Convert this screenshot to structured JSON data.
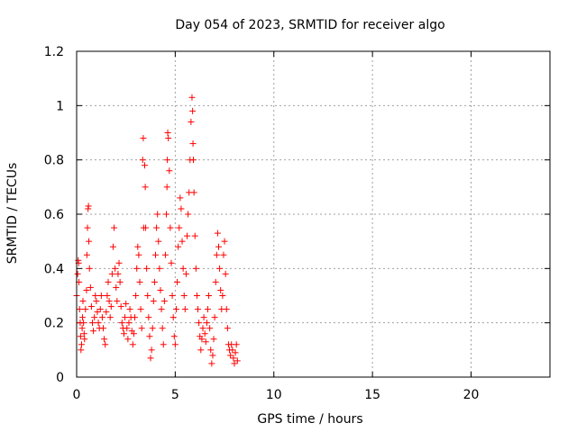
{
  "chart_data": {
    "type": "scatter",
    "title": "Day 054 of 2023, SRMTID for receiver algo",
    "xlabel": "GPS time / hours",
    "ylabel": "SRMTID / TECUs",
    "xlim": [
      0,
      24
    ],
    "ylim": [
      0,
      1.2
    ],
    "xticks": [
      0,
      5,
      10,
      15,
      20
    ],
    "xtick_labels": [
      "0",
      "5",
      "10",
      "15",
      "20"
    ],
    "yticks": [
      0,
      0.2,
      0.4,
      0.6,
      0.8,
      1,
      1.2
    ],
    "ytick_labels": [
      "0",
      "0.2",
      "0.4",
      "0.6",
      "0.8",
      "1",
      "1.2"
    ],
    "grid": true,
    "marker": "+",
    "series": [
      {
        "name": "SRMTID",
        "color": "#ff0000",
        "points": [
          [
            0.0,
            0.3
          ],
          [
            0.05,
            0.38
          ],
          [
            0.08,
            0.43
          ],
          [
            0.1,
            0.42
          ],
          [
            0.12,
            0.35
          ],
          [
            0.15,
            0.25
          ],
          [
            0.18,
            0.2
          ],
          [
            0.2,
            0.15
          ],
          [
            0.22,
            0.1
          ],
          [
            0.25,
            0.12
          ],
          [
            0.28,
            0.18
          ],
          [
            0.3,
            0.22
          ],
          [
            0.32,
            0.28
          ],
          [
            0.35,
            0.2
          ],
          [
            0.38,
            0.16
          ],
          [
            0.4,
            0.14
          ],
          [
            0.45,
            0.25
          ],
          [
            0.5,
            0.32
          ],
          [
            0.52,
            0.45
          ],
          [
            0.55,
            0.55
          ],
          [
            0.58,
            0.62
          ],
          [
            0.6,
            0.63
          ],
          [
            0.62,
            0.5
          ],
          [
            0.65,
            0.4
          ],
          [
            0.7,
            0.33
          ],
          [
            0.75,
            0.26
          ],
          [
            0.8,
            0.2
          ],
          [
            0.85,
            0.17
          ],
          [
            0.9,
            0.22
          ],
          [
            0.95,
            0.3
          ],
          [
            1.0,
            0.28
          ],
          [
            1.05,
            0.24
          ],
          [
            1.1,
            0.2
          ],
          [
            1.15,
            0.18
          ],
          [
            1.2,
            0.25
          ],
          [
            1.25,
            0.3
          ],
          [
            1.3,
            0.22
          ],
          [
            1.35,
            0.18
          ],
          [
            1.4,
            0.14
          ],
          [
            1.45,
            0.12
          ],
          [
            1.5,
            0.24
          ],
          [
            1.55,
            0.3
          ],
          [
            1.6,
            0.35
          ],
          [
            1.65,
            0.28
          ],
          [
            1.7,
            0.22
          ],
          [
            1.75,
            0.26
          ],
          [
            1.8,
            0.38
          ],
          [
            1.85,
            0.48
          ],
          [
            1.9,
            0.55
          ],
          [
            1.95,
            0.4
          ],
          [
            2.0,
            0.33
          ],
          [
            2.05,
            0.28
          ],
          [
            2.1,
            0.38
          ],
          [
            2.15,
            0.42
          ],
          [
            2.2,
            0.35
          ],
          [
            2.25,
            0.26
          ],
          [
            2.3,
            0.2
          ],
          [
            2.35,
            0.18
          ],
          [
            2.4,
            0.16
          ],
          [
            2.45,
            0.22
          ],
          [
            2.5,
            0.27
          ],
          [
            2.55,
            0.18
          ],
          [
            2.6,
            0.14
          ],
          [
            2.65,
            0.2
          ],
          [
            2.7,
            0.25
          ],
          [
            2.75,
            0.22
          ],
          [
            2.8,
            0.17
          ],
          [
            2.85,
            0.12
          ],
          [
            2.9,
            0.16
          ],
          [
            2.95,
            0.22
          ],
          [
            3.0,
            0.3
          ],
          [
            3.05,
            0.4
          ],
          [
            3.1,
            0.48
          ],
          [
            3.15,
            0.45
          ],
          [
            3.2,
            0.35
          ],
          [
            3.25,
            0.25
          ],
          [
            3.3,
            0.18
          ],
          [
            3.35,
            0.8
          ],
          [
            3.38,
            0.88
          ],
          [
            3.4,
            0.55
          ],
          [
            3.45,
            0.78
          ],
          [
            3.48,
            0.7
          ],
          [
            3.5,
            0.55
          ],
          [
            3.55,
            0.4
          ],
          [
            3.6,
            0.3
          ],
          [
            3.65,
            0.22
          ],
          [
            3.7,
            0.15
          ],
          [
            3.75,
            0.07
          ],
          [
            3.8,
            0.1
          ],
          [
            3.85,
            0.18
          ],
          [
            3.9,
            0.28
          ],
          [
            3.95,
            0.35
          ],
          [
            4.0,
            0.45
          ],
          [
            4.05,
            0.55
          ],
          [
            4.1,
            0.6
          ],
          [
            4.15,
            0.5
          ],
          [
            4.2,
            0.4
          ],
          [
            4.25,
            0.32
          ],
          [
            4.3,
            0.25
          ],
          [
            4.35,
            0.18
          ],
          [
            4.4,
            0.12
          ],
          [
            4.45,
            0.28
          ],
          [
            4.5,
            0.45
          ],
          [
            4.55,
            0.6
          ],
          [
            4.58,
            0.7
          ],
          [
            4.6,
            0.8
          ],
          [
            4.62,
            0.9
          ],
          [
            4.65,
            0.88
          ],
          [
            4.7,
            0.76
          ],
          [
            4.75,
            0.55
          ],
          [
            4.8,
            0.42
          ],
          [
            4.85,
            0.3
          ],
          [
            4.9,
            0.22
          ],
          [
            4.95,
            0.15
          ],
          [
            5.0,
            0.12
          ],
          [
            5.05,
            0.25
          ],
          [
            5.1,
            0.35
          ],
          [
            5.15,
            0.48
          ],
          [
            5.2,
            0.55
          ],
          [
            5.25,
            0.66
          ],
          [
            5.3,
            0.62
          ],
          [
            5.35,
            0.5
          ],
          [
            5.4,
            0.4
          ],
          [
            5.45,
            0.3
          ],
          [
            5.5,
            0.25
          ],
          [
            5.55,
            0.38
          ],
          [
            5.6,
            0.52
          ],
          [
            5.65,
            0.6
          ],
          [
            5.7,
            0.68
          ],
          [
            5.75,
            0.8
          ],
          [
            5.8,
            0.94
          ],
          [
            5.85,
            1.03
          ],
          [
            5.88,
            0.98
          ],
          [
            5.9,
            0.86
          ],
          [
            5.92,
            0.8
          ],
          [
            5.95,
            0.68
          ],
          [
            6.0,
            0.52
          ],
          [
            6.05,
            0.4
          ],
          [
            6.1,
            0.3
          ],
          [
            6.15,
            0.25
          ],
          [
            6.2,
            0.2
          ],
          [
            6.25,
            0.15
          ],
          [
            6.3,
            0.1
          ],
          [
            6.35,
            0.14
          ],
          [
            6.4,
            0.18
          ],
          [
            6.45,
            0.22
          ],
          [
            6.5,
            0.16
          ],
          [
            6.55,
            0.13
          ],
          [
            6.6,
            0.2
          ],
          [
            6.65,
            0.25
          ],
          [
            6.7,
            0.3
          ],
          [
            6.75,
            0.18
          ],
          [
            6.8,
            0.1
          ],
          [
            6.85,
            0.05
          ],
          [
            6.9,
            0.08
          ],
          [
            6.95,
            0.14
          ],
          [
            7.0,
            0.22
          ],
          [
            7.05,
            0.35
          ],
          [
            7.1,
            0.45
          ],
          [
            7.15,
            0.53
          ],
          [
            7.2,
            0.48
          ],
          [
            7.25,
            0.4
          ],
          [
            7.3,
            0.32
          ],
          [
            7.35,
            0.25
          ],
          [
            7.4,
            0.3
          ],
          [
            7.45,
            0.45
          ],
          [
            7.5,
            0.5
          ],
          [
            7.55,
            0.38
          ],
          [
            7.6,
            0.25
          ],
          [
            7.65,
            0.18
          ],
          [
            7.7,
            0.12
          ],
          [
            7.75,
            0.1
          ],
          [
            7.8,
            0.08
          ],
          [
            7.85,
            0.12
          ],
          [
            7.9,
            0.1
          ],
          [
            7.95,
            0.07
          ],
          [
            8.0,
            0.05
          ],
          [
            8.05,
            0.09
          ],
          [
            8.1,
            0.12
          ],
          [
            8.15,
            0.06
          ]
        ]
      }
    ]
  }
}
